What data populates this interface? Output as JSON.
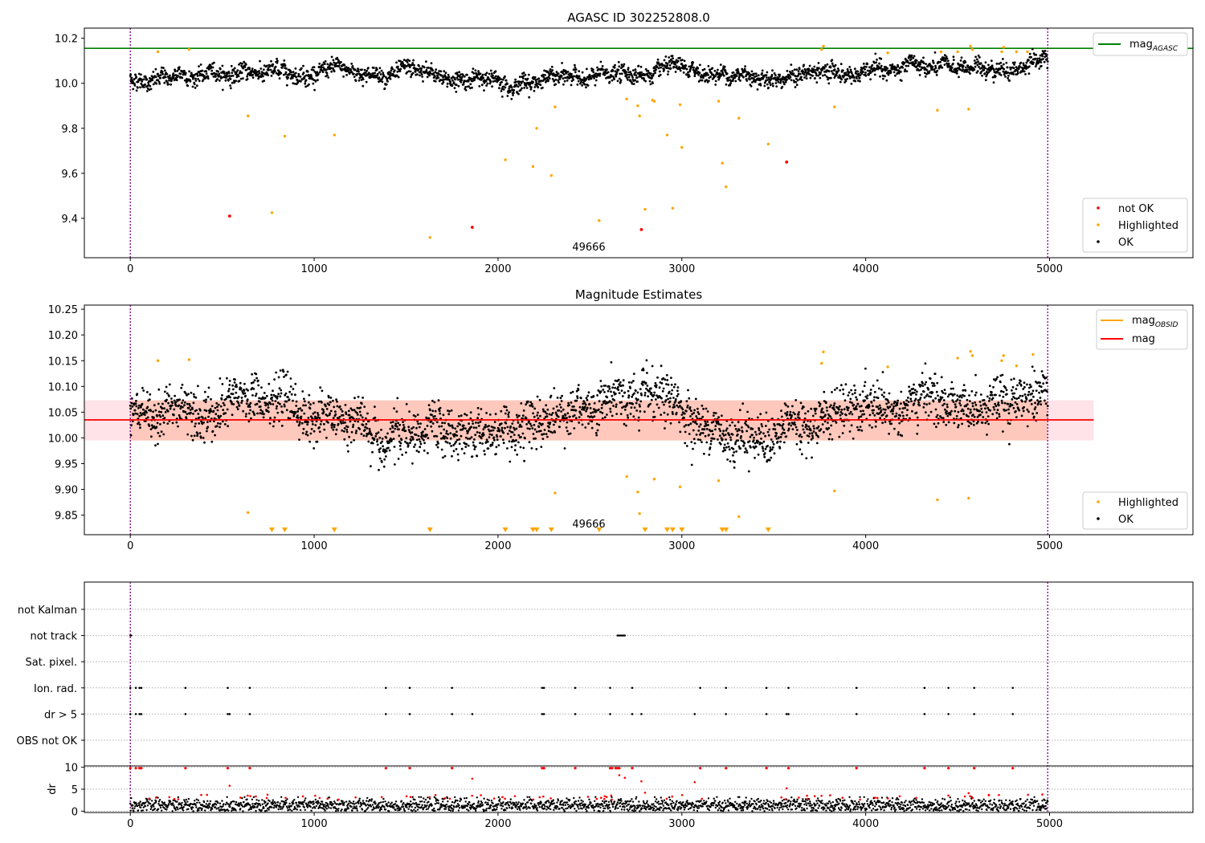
{
  "figure": {
    "panel1_title": "AGASC ID 302252808.0",
    "panel2_title": "Magnitude Estimates",
    "obsid_label": "49666"
  },
  "colors": {
    "ok": "#000000",
    "not_ok": "#ff0000",
    "highlighted": "#ffa500",
    "mag_agasc": "#008000",
    "mag_obsid": "#ffa500",
    "mag": "#ff0000",
    "band_fill": "#ffc0cb",
    "band_fill_obsid": "#ffa07a",
    "obs_bounds": "#800080",
    "dr_line": "#000000"
  },
  "chart_data": [
    {
      "id": "panel1",
      "type": "scatter",
      "title": "AGASC ID 302252808.0",
      "xlim": [
        -250,
        5780
      ],
      "ylim": [
        9.225,
        10.245
      ],
      "xticks": [
        0,
        1000,
        2000,
        3000,
        4000,
        5000
      ],
      "yticks": [
        9.4,
        9.6,
        9.8,
        10.0,
        10.2
      ],
      "grid": false,
      "obs_bounds": [
        0,
        4990
      ],
      "mag_agasc": 10.155,
      "legend_lines": [
        {
          "label": "mag",
          "sub": "AGASC",
          "color": "#008000"
        }
      ],
      "legend_lines_placement": "top-right",
      "legend_points": [
        {
          "label": "not OK",
          "color": "#ff0000"
        },
        {
          "label": "Highlighted",
          "color": "#ffa500"
        },
        {
          "label": "OK",
          "color": "#000000"
        }
      ],
      "legend_points_placement": "lower-right",
      "ok_band": {
        "x_range": [
          0,
          4990
        ],
        "start": 10.05,
        "end": 10.08
      },
      "highlighted_points": [
        [
          150,
          10.14
        ],
        [
          320,
          10.15
        ],
        [
          640,
          9.855
        ],
        [
          770,
          9.425
        ],
        [
          840,
          9.765
        ],
        [
          1110,
          9.77
        ],
        [
          1630,
          9.315
        ],
        [
          2040,
          9.66
        ],
        [
          2190,
          9.63
        ],
        [
          2210,
          9.8
        ],
        [
          2290,
          9.59
        ],
        [
          2310,
          9.895
        ],
        [
          2550,
          9.39
        ],
        [
          2700,
          9.93
        ],
        [
          2760,
          9.9
        ],
        [
          2770,
          9.855
        ],
        [
          2800,
          9.44
        ],
        [
          2840,
          9.925
        ],
        [
          2850,
          9.92
        ],
        [
          2920,
          9.77
        ],
        [
          2950,
          9.445
        ],
        [
          2990,
          9.905
        ],
        [
          3000,
          9.715
        ],
        [
          3200,
          9.92
        ],
        [
          3220,
          9.645
        ],
        [
          3240,
          9.54
        ],
        [
          3310,
          9.845
        ],
        [
          3470,
          9.73
        ],
        [
          3760,
          10.15
        ],
        [
          3770,
          10.165
        ],
        [
          3830,
          9.895
        ],
        [
          4120,
          10.135
        ],
        [
          4390,
          9.88
        ],
        [
          4410,
          10.14
        ],
        [
          4500,
          10.14
        ],
        [
          4560,
          9.885
        ],
        [
          4570,
          10.165
        ],
        [
          4580,
          10.15
        ],
        [
          4740,
          10.14
        ],
        [
          4750,
          10.16
        ],
        [
          4820,
          10.14
        ],
        [
          4880,
          10.14
        ]
      ],
      "not_ok_points": [
        [
          540,
          9.41
        ],
        [
          1860,
          9.36
        ],
        [
          2780,
          9.35
        ],
        [
          3570,
          9.65
        ]
      ]
    },
    {
      "id": "panel2",
      "type": "scatter",
      "title": "Magnitude Estimates",
      "xlim": [
        -250,
        5780
      ],
      "ylim": [
        9.812,
        10.258
      ],
      "xticks": [
        0,
        1000,
        2000,
        3000,
        4000,
        5000
      ],
      "yticks": [
        9.85,
        9.9,
        9.95,
        10.0,
        10.05,
        10.1,
        10.15,
        10.2,
        10.25
      ],
      "grid": false,
      "obs_bounds": [
        0,
        4990
      ],
      "mag": 10.035,
      "mag_band": [
        9.995,
        10.073
      ],
      "mag_band_x": [
        -250,
        5240
      ],
      "mag_obsid_x": [
        0,
        4990
      ],
      "legend_lines": [
        {
          "label": "mag",
          "sub": "OBSID",
          "color": "#ffa500"
        },
        {
          "label": "mag",
          "sub": "",
          "color": "#ff0000"
        }
      ],
      "legend_lines_placement": "top-right",
      "legend_points": [
        {
          "label": "Highlighted",
          "color": "#ffa500"
        },
        {
          "label": "OK",
          "color": "#000000"
        }
      ],
      "legend_points_placement": "lower-right",
      "ok_band": {
        "x_range": [
          0,
          4990
        ],
        "start": 10.02,
        "end": 10.06
      },
      "highlighted_points": [
        [
          150,
          10.15
        ],
        [
          320,
          10.152
        ],
        [
          640,
          9.855
        ],
        [
          2310,
          9.893
        ],
        [
          2700,
          9.925
        ],
        [
          2760,
          9.895
        ],
        [
          2770,
          9.853
        ],
        [
          2850,
          9.92
        ],
        [
          2990,
          9.905
        ],
        [
          3200,
          9.917
        ],
        [
          3310,
          9.847
        ],
        [
          3760,
          10.145
        ],
        [
          3770,
          10.167
        ],
        [
          3830,
          9.897
        ],
        [
          4120,
          10.138
        ],
        [
          4390,
          9.88
        ],
        [
          4500,
          10.155
        ],
        [
          4560,
          9.883
        ],
        [
          4570,
          10.168
        ],
        [
          4580,
          10.16
        ],
        [
          4740,
          10.15
        ],
        [
          4750,
          10.16
        ],
        [
          4820,
          10.14
        ],
        [
          4910,
          10.162
        ]
      ],
      "clipped_x": [
        770,
        840,
        1110,
        1630,
        2040,
        2190,
        2210,
        2290,
        2550,
        2800,
        2920,
        2950,
        3000,
        3220,
        3240,
        3470
      ]
    },
    {
      "id": "panel3",
      "type": "scatter",
      "xlim": [
        -250,
        5780
      ],
      "xticks": [
        0,
        1000,
        2000,
        3000,
        4000,
        5000
      ],
      "obs_bounds": [
        0,
        4990
      ],
      "flag_labels": [
        "not Kalman",
        "not track",
        "Sat. pixel.",
        "Ion. rad.",
        "dr > 5",
        "OBS not OK"
      ],
      "flags": {
        "not track": [
          [
            0,
            5
          ],
          [
            2650,
            2690
          ]
        ],
        "ion_rad": [
          0,
          30,
          50,
          60,
          300,
          530,
          650,
          1390,
          1520,
          1750,
          2240,
          2250,
          2420,
          2610,
          2730,
          3100,
          3240,
          3460,
          3580,
          3950,
          4320,
          4450,
          4590,
          4800
        ],
        "dr_gt_5": [
          0,
          30,
          50,
          60,
          300,
          530,
          540,
          650,
          1390,
          1520,
          1750,
          1860,
          2240,
          2250,
          2420,
          2610,
          2730,
          2780,
          3070,
          3240,
          3460,
          3570,
          3580,
          3950,
          4320,
          4450,
          4590,
          4800
        ]
      },
      "dr_ylabel": "dr",
      "dr_ylim": [
        -0.3,
        10.3
      ],
      "dr_yticks": [
        0,
        5,
        10
      ],
      "dr_spikes_ten": [
        0,
        30,
        50,
        60,
        300,
        530,
        650,
        1390,
        1520,
        1750,
        2240,
        2250,
        2420,
        2610,
        2620,
        2640,
        2650,
        2660,
        2730,
        3100,
        3240,
        3460,
        3580,
        3950,
        4320,
        4450,
        4590,
        4800
      ],
      "dr_mid_red": [
        [
          540,
          5.8
        ],
        [
          1860,
          7.4
        ],
        [
          2660,
          8.2
        ],
        [
          2690,
          7.6
        ],
        [
          2780,
          6.8
        ],
        [
          2800,
          4.2
        ],
        [
          3070,
          6.6
        ],
        [
          3570,
          5.2
        ],
        [
          4560,
          4.1
        ],
        [
          4670,
          3.6
        ],
        [
          2580,
          3.4
        ],
        [
          1660,
          3.7
        ]
      ]
    }
  ]
}
